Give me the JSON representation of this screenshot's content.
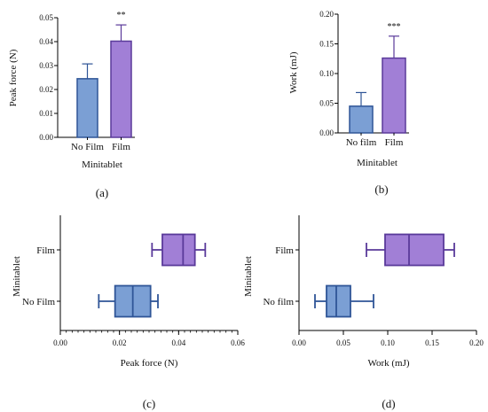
{
  "colors": {
    "blue_fill": "#7b9fd4",
    "blue_edge": "#2f5597",
    "purple_fill": "#a17fd6",
    "purple_edge": "#5a3a9a",
    "axis": "#000000"
  },
  "chart_data": [
    {
      "id": "a",
      "type": "bar",
      "caption": "(a)",
      "categories": [
        "No Film",
        "Film"
      ],
      "values": [
        0.0245,
        0.0402
      ],
      "errors": [
        0.0062,
        0.0068
      ],
      "significance": "**",
      "xlabel": "Minitablet",
      "ylabel": "Peak force (N)",
      "ylim": [
        0,
        0.05
      ],
      "yticks": [
        "0.00",
        "0.01",
        "0.02",
        "0.03",
        "0.04",
        "0.05"
      ]
    },
    {
      "id": "b",
      "type": "bar",
      "caption": "(b)",
      "categories": [
        "No film",
        "Film"
      ],
      "values": [
        0.045,
        0.126
      ],
      "errors": [
        0.023,
        0.037
      ],
      "significance": "***",
      "xlabel": "Minitablet",
      "ylabel": "Work (mJ)",
      "ylim": [
        0,
        0.2
      ],
      "yticks": [
        "0.00",
        "0.05",
        "0.10",
        "0.15",
        "0.20"
      ]
    },
    {
      "id": "c",
      "type": "box",
      "caption": "(c)",
      "categories": [
        "Film",
        "No Film"
      ],
      "boxes": [
        {
          "min": 0.031,
          "q1": 0.0345,
          "median": 0.0415,
          "q3": 0.0455,
          "max": 0.049
        },
        {
          "min": 0.013,
          "q1": 0.0185,
          "median": 0.0245,
          "q3": 0.0305,
          "max": 0.033
        }
      ],
      "xlabel": "Peak force (N)",
      "ylabel": "Minitablet",
      "xlim": [
        0,
        0.06
      ],
      "xticks": [
        "0.00",
        "0.02",
        "0.04",
        "0.06"
      ]
    },
    {
      "id": "d",
      "type": "box",
      "caption": "(d)",
      "categories": [
        "Film",
        "No film"
      ],
      "boxes": [
        {
          "min": 0.076,
          "q1": 0.097,
          "median": 0.124,
          "q3": 0.163,
          "max": 0.175
        },
        {
          "min": 0.018,
          "q1": 0.031,
          "median": 0.042,
          "q3": 0.058,
          "max": 0.084
        }
      ],
      "xlabel": "Work (mJ)",
      "ylabel": "Minitablet",
      "xlim": [
        0,
        0.2
      ],
      "xticks": [
        "0.00",
        "0.05",
        "0.10",
        "0.15",
        "0.20"
      ]
    }
  ]
}
